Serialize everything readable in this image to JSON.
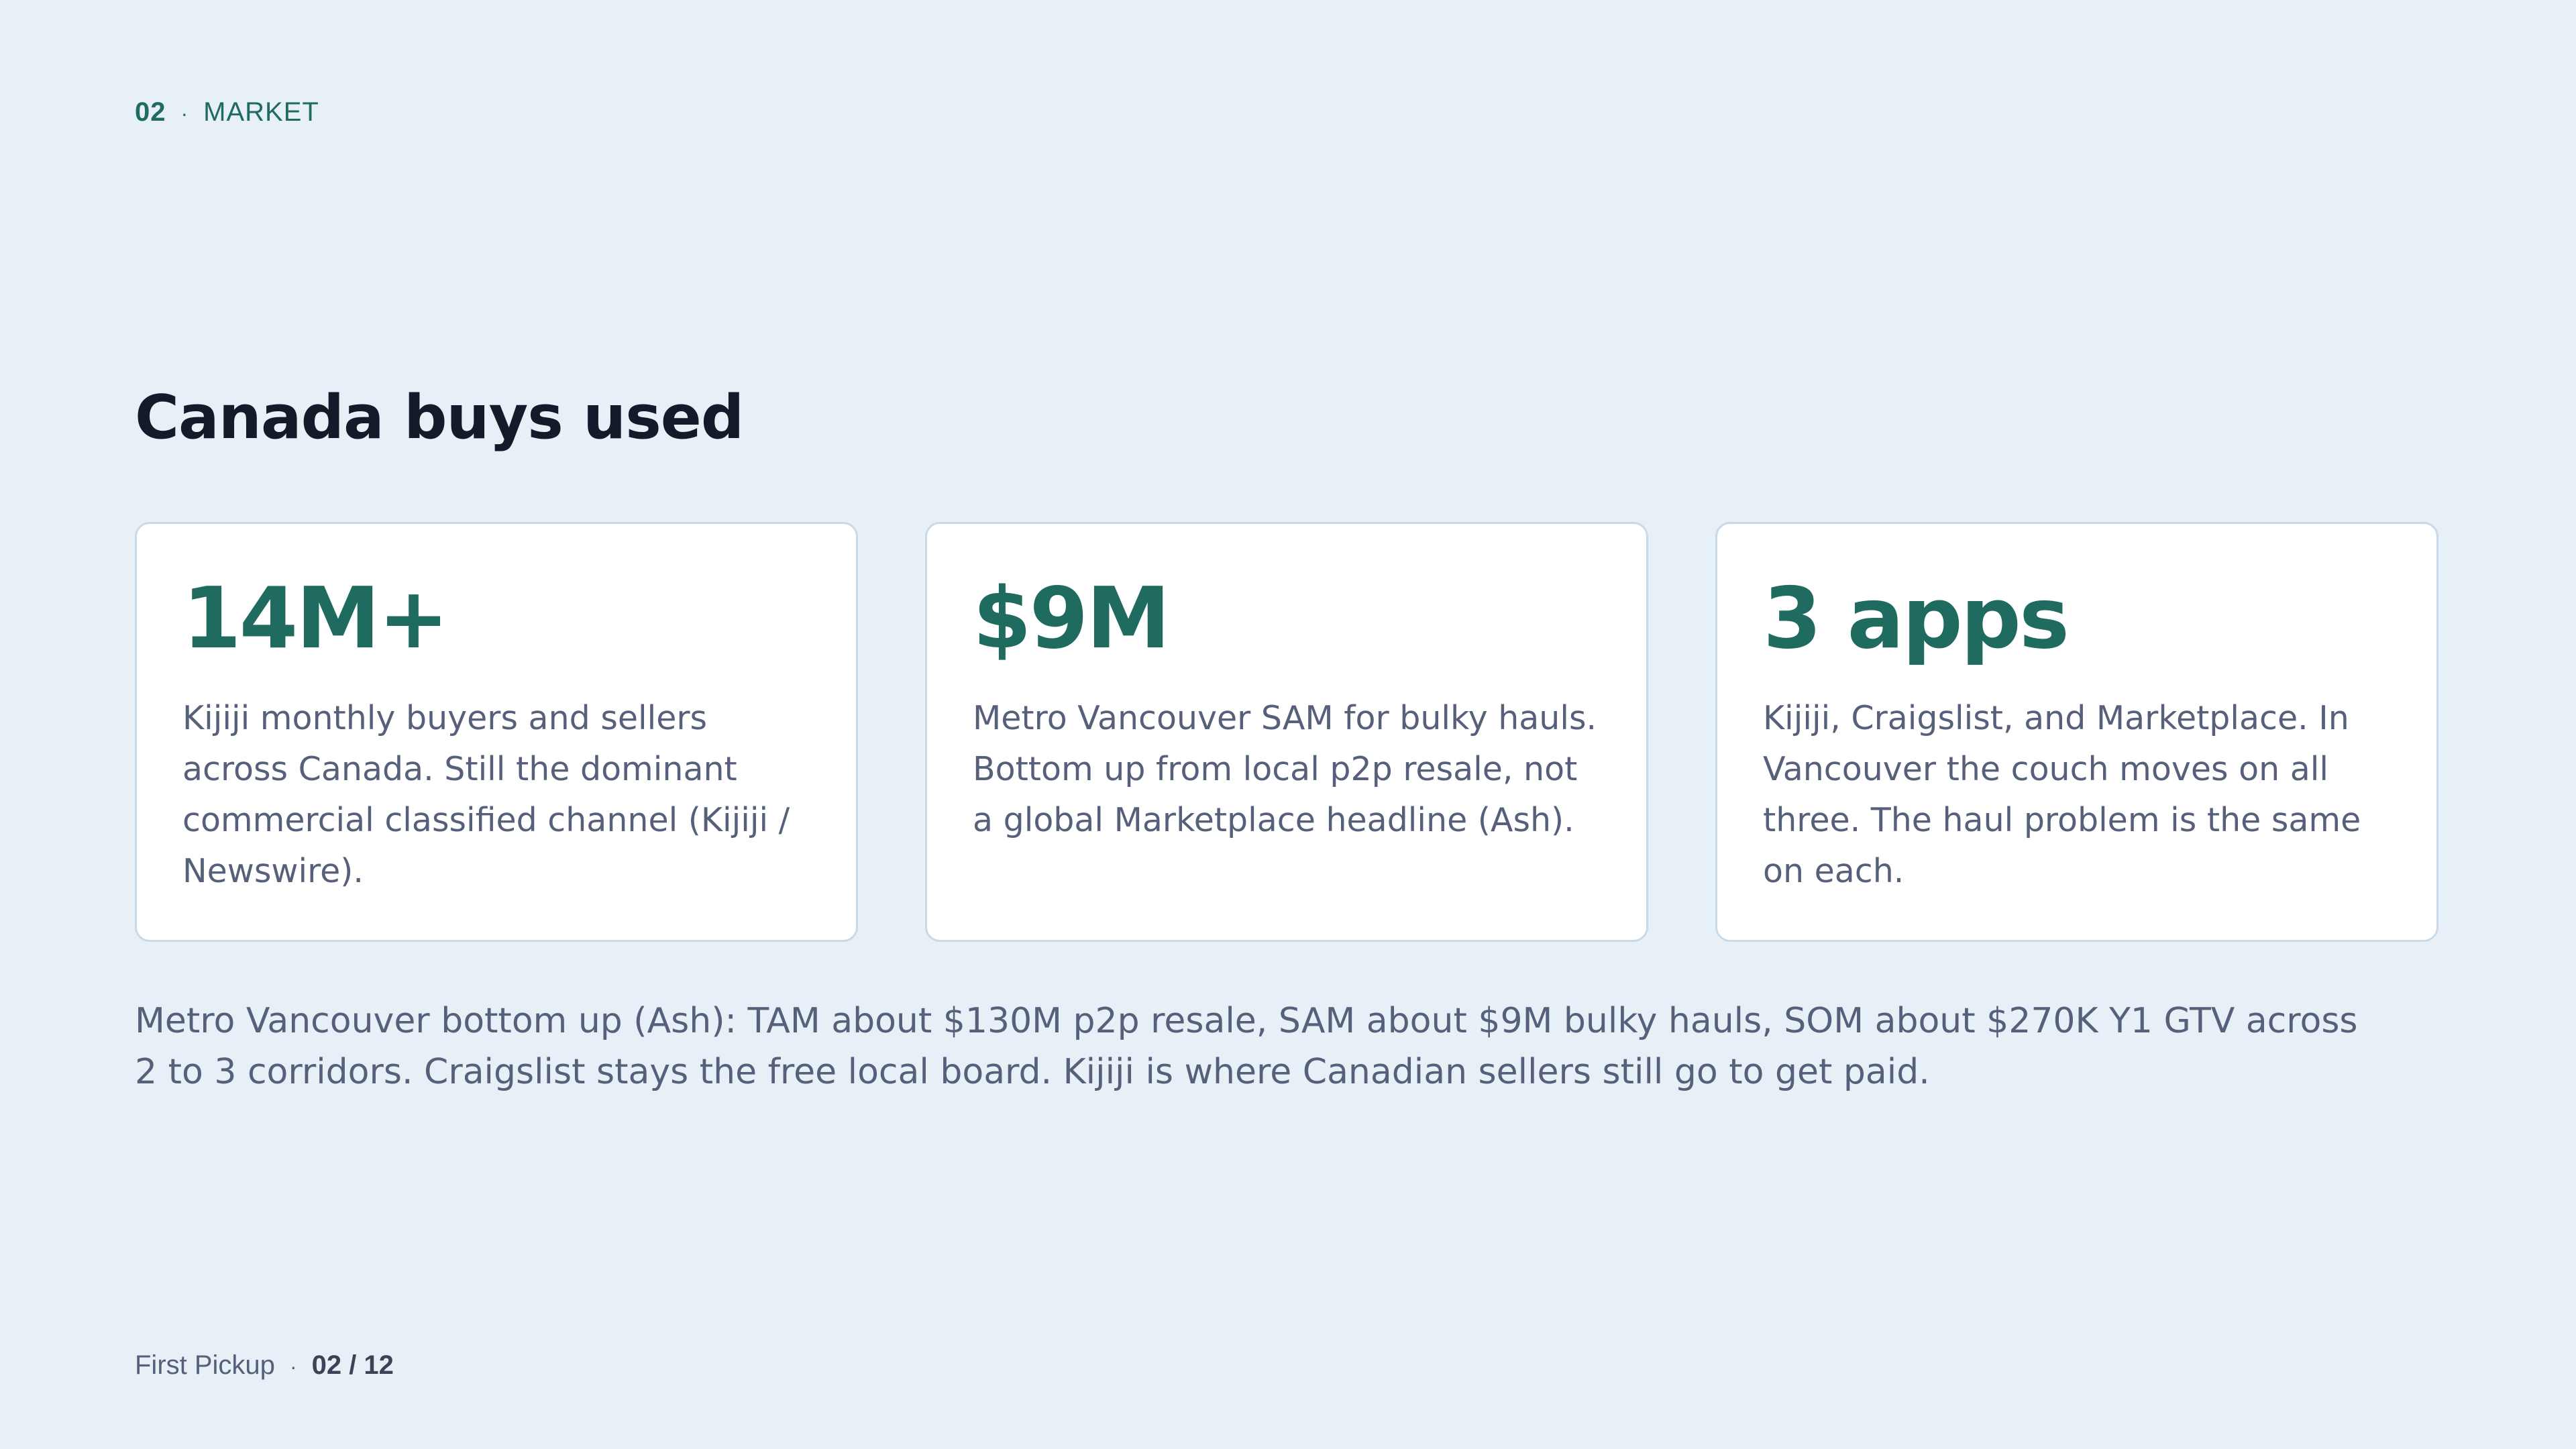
{
  "header": {
    "section_number": "02",
    "separator": "·",
    "section_label": "MARKET"
  },
  "title": "Canada buys used",
  "cards": [
    {
      "stat": "14M+",
      "description": "Kijiji monthly buyers and sellers across Canada. Still the dominant commercial classified channel (Kijiji / Newswire)."
    },
    {
      "stat": "$9M",
      "description": "Metro Vancouver SAM for bulky hauls. Bottom up from local p2p resale, not a global Marketplace headline (Ash)."
    },
    {
      "stat": "3 apps",
      "description": "Kijiji, Craigslist, and Marketplace. In Vancouver the couch moves on all three. The haul problem is the same on each."
    }
  ],
  "summary": "Metro Vancouver bottom up (Ash): TAM about $130M p2p resale, SAM about $9M bulky hauls, SOM about $270K Y1 GTV across 2 to 3 corridors. Craigslist stays the free local board. Kijiji is where Canadian sellers still go to get paid.",
  "footer": {
    "brand": "First Pickup",
    "separator": "·",
    "page": "02 / 12"
  },
  "colors": {
    "background": "#e7eff7",
    "accent": "#1f6b60",
    "title": "#131a2a",
    "body_text": "#56607a",
    "card_border": "#cad9e8"
  }
}
